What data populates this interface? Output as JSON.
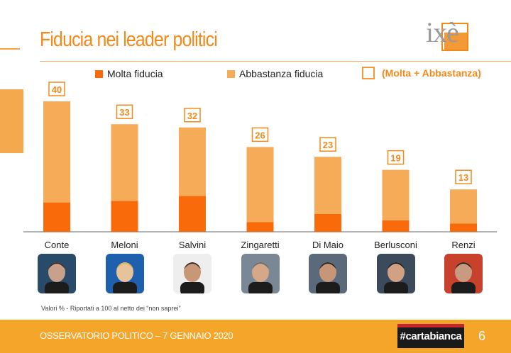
{
  "title": "Fiducia nei leader politici",
  "logo": "ixè",
  "legend": {
    "molta": "Molta fiducia",
    "abbastanza": "Abbastanza fiducia",
    "totale": "(Molta + Abbastanza)"
  },
  "colors": {
    "molta": "#F86A0A",
    "abbastanza": "#F5AB57",
    "accent": "#F28A1A",
    "footer": "#F6A52B"
  },
  "chart_data": {
    "type": "bar",
    "stacked": true,
    "categories": [
      "Conte",
      "Meloni",
      "Salvini",
      "Zingaretti",
      "Di Maio",
      "Berlusconi",
      "Renzi"
    ],
    "series": [
      {
        "name": "Molta fiducia",
        "values": [
          9,
          9.5,
          11,
          3,
          5.5,
          3.5,
          2.5
        ]
      },
      {
        "name": "Abbastanza fiducia",
        "values": [
          31,
          23.5,
          21,
          23,
          17.5,
          15.5,
          10.5
        ]
      }
    ],
    "totals": [
      40,
      33,
      32,
      26,
      23,
      19,
      13
    ],
    "totals_label": "(Molta + Abbastanza)",
    "ylim": [
      0,
      40
    ],
    "grid": false,
    "legend_position": "top"
  },
  "portraits": [
    "Conte",
    "Meloni",
    "Salvini",
    "Zingaretti",
    "Di Maio",
    "Berlusconi",
    "Renzi"
  ],
  "note": "Valori % - Riportati a 100 al netto dei “non saprei”",
  "footer": {
    "text": "OSSERVATORIO POLITICO – 7 GENNAIO 2020",
    "brand": "#cartabianca",
    "page": "6"
  }
}
